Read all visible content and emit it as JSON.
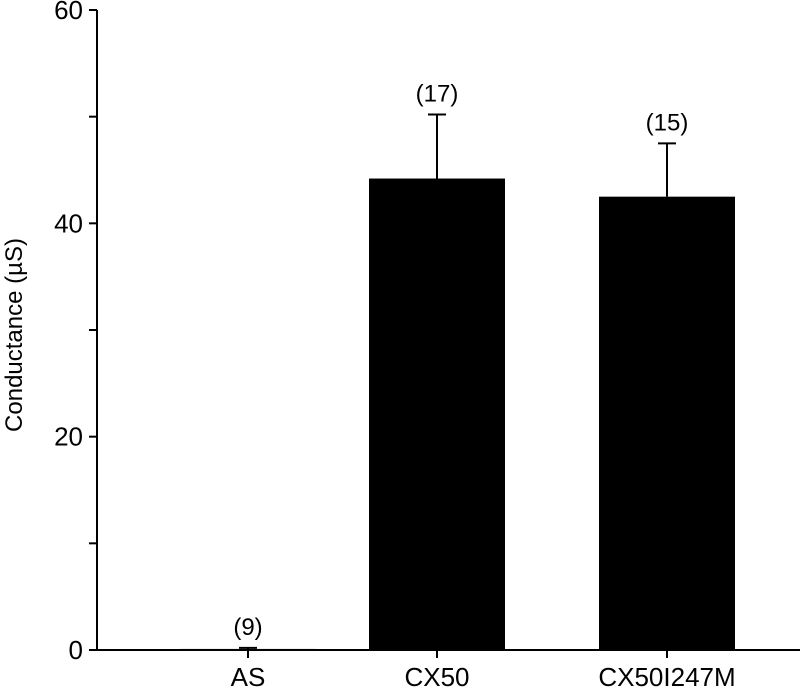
{
  "chart_data": {
    "type": "bar",
    "title": "",
    "xlabel": "",
    "ylabel": "Conductance (µS)",
    "ylim": [
      0,
      60
    ],
    "yticks": [
      0,
      20,
      40,
      60
    ],
    "categories": [
      "AS",
      "CX50",
      "CX50I247M"
    ],
    "values": [
      0.1,
      44.2,
      42.5
    ],
    "errors": [
      0.1,
      6.0,
      5.0
    ],
    "n_labels": [
      "(9)",
      "(17)",
      "(15)"
    ],
    "bar_color": "#000000",
    "grid": false,
    "legend": "none"
  }
}
